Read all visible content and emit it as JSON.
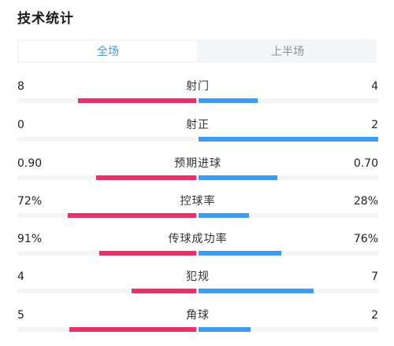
{
  "header": {
    "title": "技术统计"
  },
  "tabs": [
    {
      "label": "全场",
      "active": true
    },
    {
      "label": "上半场",
      "active": false
    }
  ],
  "colors": {
    "home": "#ea3068",
    "away": "#3f9cf0",
    "active_tab": "#3a9cf2"
  },
  "stats": [
    {
      "label": "射门",
      "home": "8",
      "away": "4",
      "home_fill": 0.66,
      "away_fill": 0.33
    },
    {
      "label": "射正",
      "home": "0",
      "away": "2",
      "home_fill": 0.0,
      "away_fill": 1.0
    },
    {
      "label": "预期进球",
      "home": "0.90",
      "away": "0.70",
      "home_fill": 0.56,
      "away_fill": 0.44
    },
    {
      "label": "控球率",
      "home": "72%",
      "away": "28%",
      "home_fill": 0.72,
      "away_fill": 0.28
    },
    {
      "label": "传球成功率",
      "home": "91%",
      "away": "76%",
      "home_fill": 0.54,
      "away_fill": 0.46
    },
    {
      "label": "犯规",
      "home": "4",
      "away": "7",
      "home_fill": 0.36,
      "away_fill": 0.64
    },
    {
      "label": "角球",
      "home": "5",
      "away": "2",
      "home_fill": 0.71,
      "away_fill": 0.29
    }
  ]
}
